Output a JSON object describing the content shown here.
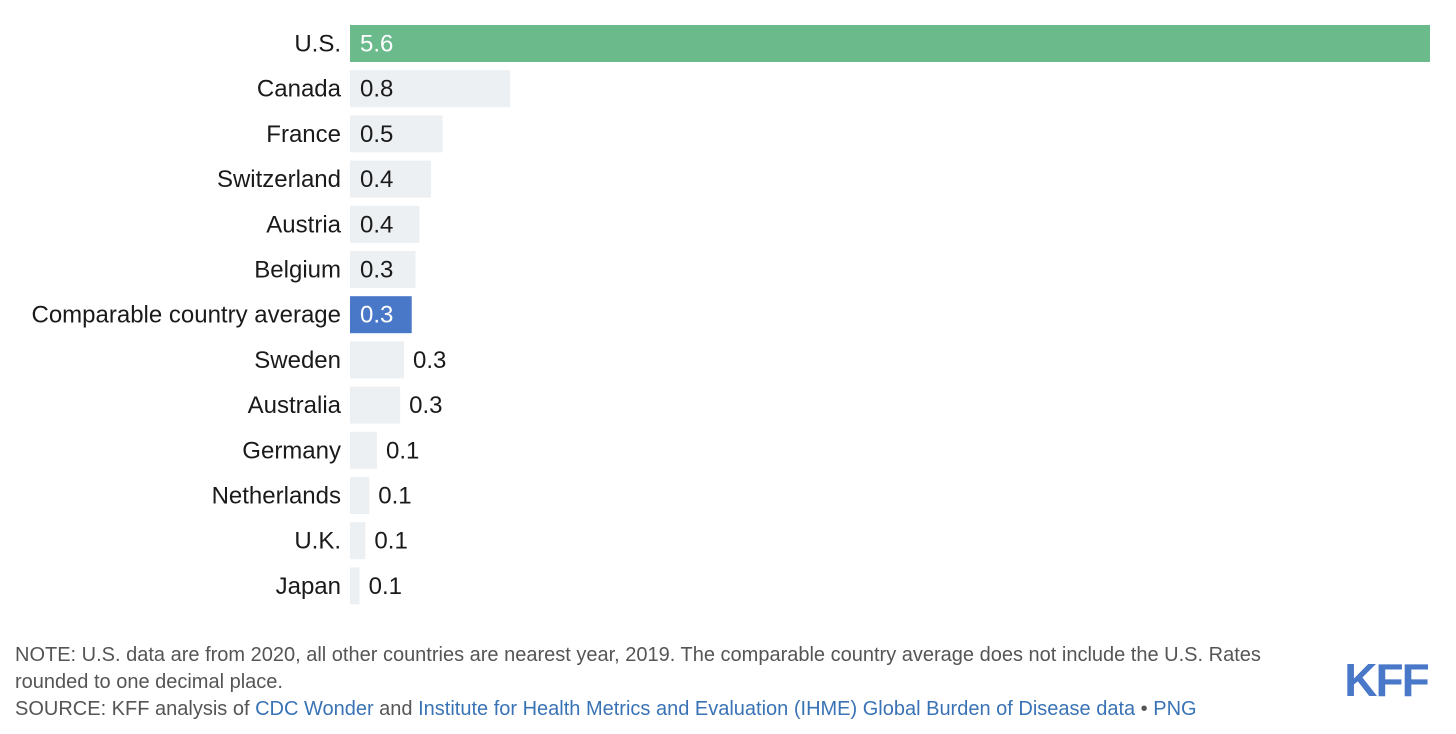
{
  "chart_data": {
    "type": "bar",
    "orientation": "horizontal",
    "categories": [
      "U.S.",
      "Canada",
      "France",
      "Switzerland",
      "Austria",
      "Belgium",
      "Comparable country average",
      "Sweden",
      "Australia",
      "Germany",
      "Netherlands",
      "U.K.",
      "Japan"
    ],
    "values": [
      5.6,
      0.8,
      0.5,
      0.4,
      0.4,
      0.3,
      0.3,
      0.3,
      0.3,
      0.1,
      0.1,
      0.1,
      0.1
    ],
    "value_labels": [
      "5.6",
      "0.8",
      "0.5",
      "0.4",
      "0.4",
      "0.3",
      "0.3",
      "0.3",
      "0.3",
      "0.1",
      "0.1",
      "0.1",
      "0.1"
    ],
    "bar_values_unrounded": [
      5.6,
      0.83,
      0.48,
      0.42,
      0.36,
      0.34,
      0.32,
      0.28,
      0.26,
      0.14,
      0.1,
      0.08,
      0.05
    ],
    "highlight": {
      "U.S.": "#6aba8c",
      "Comparable country average": "#4a78c9"
    },
    "default_bar_color": "#edf0f3",
    "xlim": [
      0,
      5.6
    ],
    "grid": false,
    "legend": "none",
    "title": "",
    "xlabel": "",
    "ylabel": ""
  },
  "footer": {
    "note": "NOTE: U.S. data are from 2020, all other countries are nearest year, 2019. The comparable country average does not include the U.S. Rates rounded to one decimal place.",
    "source_prefix": "SOURCE: KFF analysis of ",
    "link1": "CDC Wonder",
    "and": " and ",
    "link2": "Institute for Health Metrics and Evaluation (IHME) Global Burden of Disease data",
    "separator": " • ",
    "link3": "PNG"
  },
  "logo": {
    "text": "KFF",
    "color": "#4a78c9"
  }
}
